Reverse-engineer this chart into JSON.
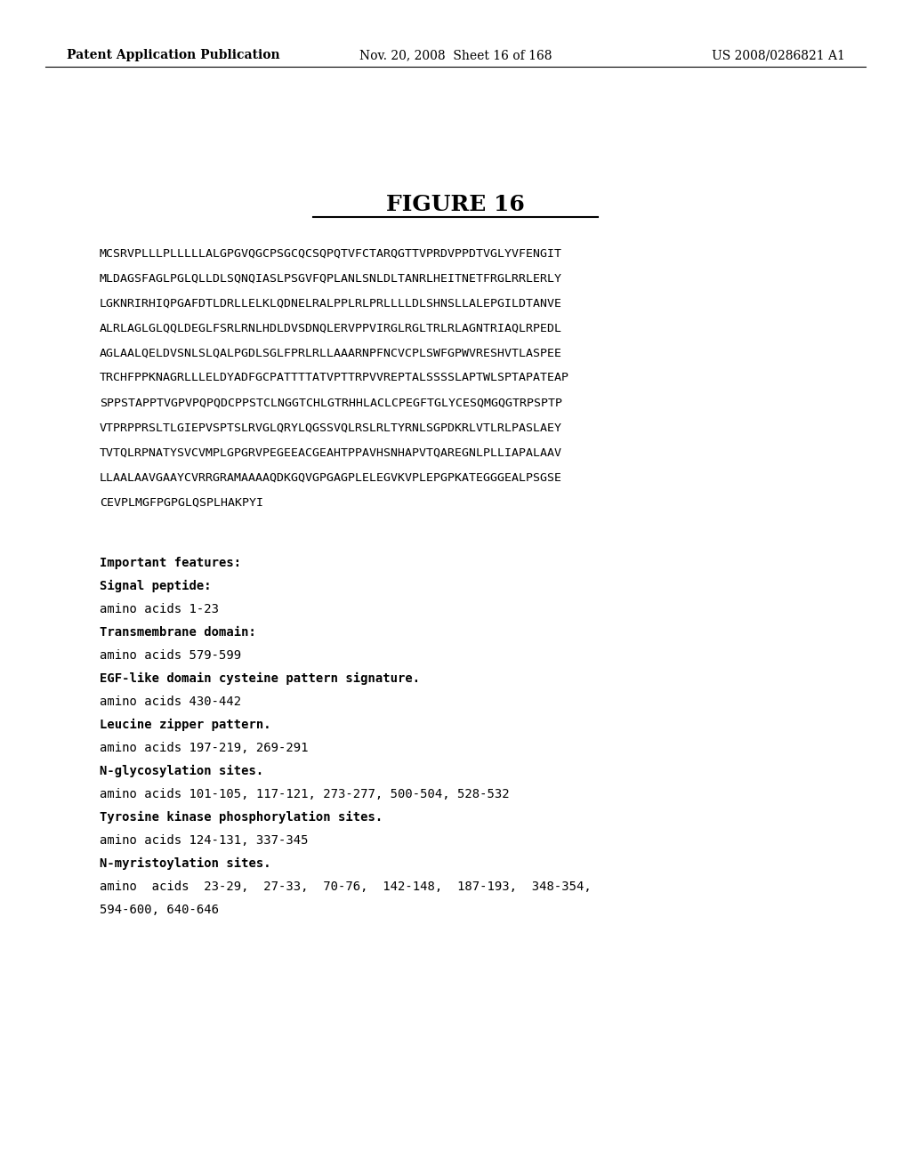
{
  "header_left": "Patent Application Publication",
  "header_middle": "Nov. 20, 2008  Sheet 16 of 168",
  "header_right": "US 2008/0286821 A1",
  "figure_title": "FIGURE 16",
  "sequence_lines": [
    "MCSRVPLLLPLLLLLALGPGVQGCPSGCQCSQPQTVFCTARQGTTVPRDVPPDTVGLYVFENGIT",
    "MLDAGSFAGLPGLQLLDLSQNQIASLPSGVFQPLANLSNLDLTANRLHEITNETFRGLRRLERLY",
    "LGKNRIRHIQPGAFDTLDRLLELKLQDNELRALPPLRLPRLLLLDLSHNSLLALEPGILDTANVE",
    "ALRLAGLGLQQLDEGLFSR LRNLHDLDVSDNQLERVPPVIRGLRGLTRLRLAGNTRIAQLRPEDL",
    "AGLAALQELDVSNLSLQALPGDLSGLFPRLRLLAAARNPFNCVCPLSWFGPWVRESHVTLASPEE",
    "TRCHFPPKNAGRLLLELDYADFGCPATTTTATVPTTRPVVREPTALSS SLAPTWLSPTAPATEAP",
    "SPPSTAPPTVGPVPQPQDCPPSTCLNGGTCHLGTRHHLACLCPEGFTGLYCESQMGQGTRPSPTP",
    "VTPRPPRSLTLGIEPVSPTSLRVGLQRYLQGSSVQLRSLRLTYRNLSGPDKRLVTLRLPASLAEY",
    "TVTQLRPNATYSVCVMPLGPGRVPEGEEACGEAHTPPAVHSNHAPVTQAREGNLPLLIAPALAAV",
    "LLAALAAVGAAYCVRRGRAMAAAAQDKGQVGPGAGPLELEGVKVPLEPGPKATEGGGEAL PSGSE",
    "CEVPLMGFPGPGLQSPLHAKPYI"
  ],
  "features_header": "Important features:",
  "features": [
    {
      "label": "Signal peptide:",
      "bold": true,
      "value": "amino acids 1-23"
    },
    {
      "label": "Transmembrane domain:",
      "bold": true,
      "value": "amino acids 579-599"
    },
    {
      "label": "EGF-like domain cysteine pattern signature.",
      "bold": true,
      "value": "amino acids 430-442"
    },
    {
      "label": "Leucine zipper pattern.",
      "bold": true,
      "value": "amino acids 197-219, 269-291"
    },
    {
      "label": "N-glycosylation sites.",
      "bold": true,
      "value": "amino acids 101-105, 117-121, 273-277, 500-504, 528-532"
    },
    {
      "label": "Tyrosine kinase phosphorylation sites.",
      "bold": true,
      "value": "amino acids 124-131, 337-345"
    },
    {
      "label": "N-myristoylation sites.",
      "bold": true,
      "value": "amino  acids  23-29,  27-33,  70-76,  142-148,  187-193,  348-354,\n594-600, 640-646"
    }
  ],
  "bg_color": "#ffffff",
  "text_color": "#000000",
  "header_fontsize": 10,
  "title_fontsize": 18,
  "seq_fontsize": 9.5,
  "feat_fontsize": 10
}
